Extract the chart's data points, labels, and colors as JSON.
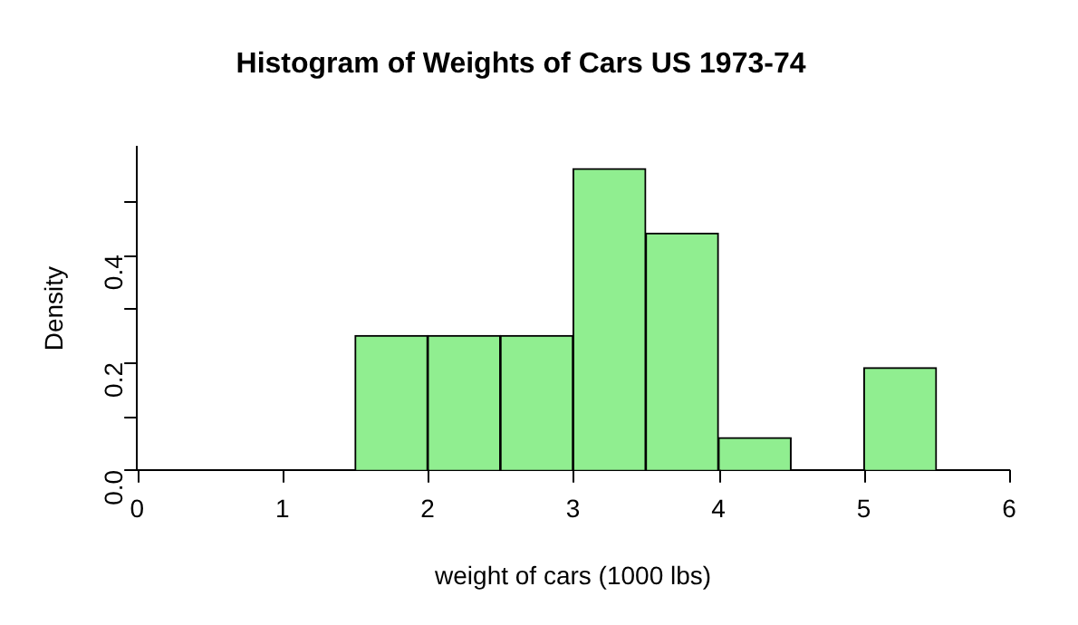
{
  "chart_data": {
    "type": "histogram",
    "title": "Histogram of Weights of Cars US 1973-74",
    "xlabel": "weight of cars (1000 lbs)",
    "ylabel": "Density",
    "bins": [
      0,
      0.5,
      1,
      1.5,
      2,
      2.5,
      3,
      3.5,
      4,
      4.5,
      5,
      5.5,
      6
    ],
    "values": [
      0,
      0,
      0,
      0.25,
      0.25,
      0.25,
      0.56,
      0.44,
      0.06,
      0,
      0.19,
      0
    ],
    "color": "#90ee90",
    "xlim": [
      0,
      6
    ],
    "xticks": [
      0,
      1,
      2,
      3,
      4,
      5,
      6
    ],
    "ylim": [
      0,
      0.6
    ],
    "yticks": [
      {
        "value": 0,
        "label": "0.0"
      },
      {
        "value": 0.1,
        "label": null
      },
      0.2,
      {
        "value": 0.3,
        "label": null
      },
      0.4,
      {
        "value": 0.5,
        "label": null
      }
    ],
    "grid": false,
    "legend": false
  }
}
